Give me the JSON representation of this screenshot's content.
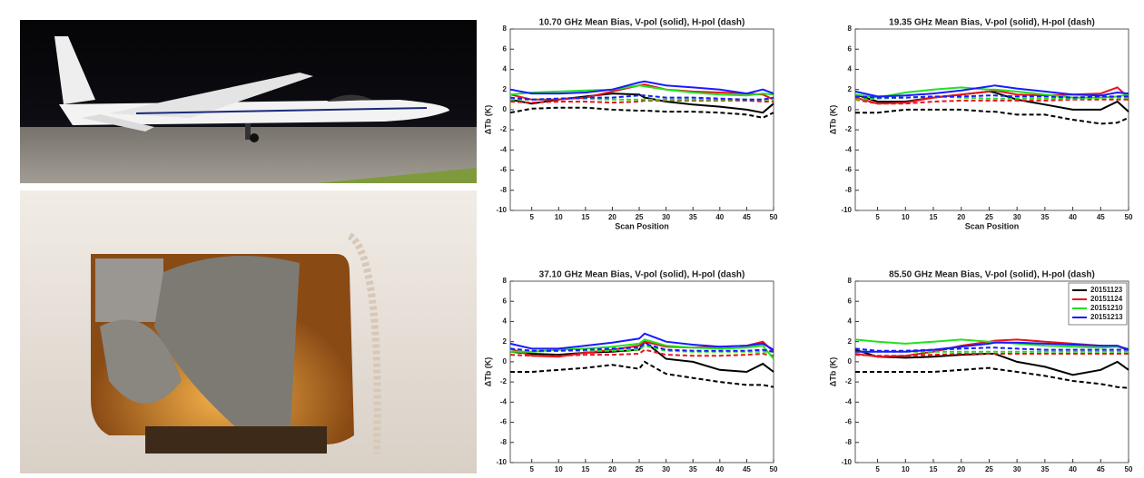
{
  "chart_data": [
    {
      "type": "line",
      "title": "10.70 GHz  Mean Bias, V-pol (solid), H-pol (dash)",
      "xlabel": "Scan Position",
      "ylabel": "ΔTb (K)",
      "xlim": [
        1,
        50
      ],
      "ylim": [
        -10,
        8
      ],
      "xticks": [
        5,
        10,
        15,
        20,
        25,
        30,
        35,
        40,
        45,
        50
      ],
      "yticks": [
        -10,
        -8,
        -6,
        -4,
        -2,
        0,
        2,
        4,
        6,
        8
      ],
      "x": [
        1,
        5,
        10,
        15,
        20,
        25,
        26,
        30,
        35,
        40,
        45,
        48,
        50
      ],
      "series": [
        {
          "color": "#000000",
          "values": [
            1.0,
            0.6,
            1.0,
            1.3,
            1.6,
            1.5,
            1.2,
            0.8,
            0.5,
            0.3,
            0.0,
            -0.3,
            0.6
          ],
          "h_values": [
            -0.3,
            0.1,
            0.2,
            0.2,
            0.0,
            -0.1,
            -0.1,
            -0.2,
            -0.2,
            -0.3,
            -0.5,
            -0.8,
            -0.3
          ]
        },
        {
          "color": "#e8141c",
          "values": [
            1.5,
            1.0,
            1.0,
            1.2,
            1.8,
            2.4,
            2.5,
            2.0,
            1.8,
            1.7,
            1.6,
            1.5,
            1.0
          ],
          "h_values": [
            0.8,
            0.7,
            0.8,
            0.8,
            0.7,
            0.8,
            0.9,
            0.9,
            0.9,
            0.9,
            0.9,
            0.8,
            0.8
          ]
        },
        {
          "color": "#22e022",
          "values": [
            1.5,
            1.7,
            1.8,
            1.9,
            2.0,
            2.4,
            2.3,
            2.0,
            1.7,
            1.5,
            1.4,
            1.6,
            1.5
          ],
          "h_values": [
            1.0,
            1.0,
            1.1,
            1.1,
            1.0,
            1.0,
            1.0,
            1.0,
            1.0,
            1.0,
            1.0,
            1.0,
            1.0
          ]
        },
        {
          "color": "#1a1aff",
          "values": [
            2.0,
            1.6,
            1.6,
            1.7,
            2.0,
            2.7,
            2.8,
            2.4,
            2.2,
            2.0,
            1.6,
            2.0,
            1.6
          ],
          "h_values": [
            1.2,
            1.0,
            1.1,
            1.2,
            1.2,
            1.4,
            1.4,
            1.2,
            1.2,
            1.1,
            1.0,
            1.0,
            1.2
          ]
        }
      ]
    },
    {
      "type": "line",
      "title": "19.35 GHz  Mean Bias, V-pol (solid), H-pol (dash)",
      "xlabel": "Scan Position",
      "ylabel": "ΔTb (K)",
      "xlim": [
        1,
        50
      ],
      "ylim": [
        -10,
        8
      ],
      "xticks": [
        5,
        10,
        15,
        20,
        25,
        30,
        35,
        40,
        45,
        50
      ],
      "yticks": [
        -10,
        -8,
        -6,
        -4,
        -2,
        0,
        2,
        4,
        6,
        8
      ],
      "x": [
        1,
        5,
        10,
        15,
        20,
        25,
        26,
        30,
        35,
        40,
        45,
        48,
        50
      ],
      "series": [
        {
          "color": "#000000",
          "values": [
            1.5,
            0.8,
            0.8,
            1.2,
            1.5,
            1.8,
            1.7,
            1.0,
            0.5,
            0.0,
            0.0,
            0.8,
            -0.2
          ],
          "h_values": [
            -0.3,
            -0.3,
            0.0,
            0.0,
            0.0,
            -0.2,
            -0.2,
            -0.5,
            -0.5,
            -1.0,
            -1.4,
            -1.3,
            -0.8
          ]
        },
        {
          "color": "#e8141c",
          "values": [
            1.2,
            0.6,
            0.7,
            1.2,
            1.5,
            1.8,
            1.9,
            1.5,
            1.4,
            1.5,
            1.6,
            2.2,
            1.2
          ],
          "h_values": [
            1.0,
            0.6,
            0.6,
            0.8,
            0.9,
            0.9,
            0.9,
            0.9,
            0.9,
            1.0,
            1.0,
            1.0,
            1.0
          ]
        },
        {
          "color": "#22e022",
          "values": [
            1.5,
            1.2,
            1.7,
            2.0,
            2.2,
            2.0,
            2.0,
            1.8,
            1.5,
            1.2,
            1.2,
            1.3,
            1.5
          ],
          "h_values": [
            1.0,
            1.1,
            1.2,
            1.3,
            1.2,
            1.1,
            1.1,
            1.1,
            1.1,
            1.1,
            1.2,
            1.2,
            1.2
          ]
        },
        {
          "color": "#1a1aff",
          "values": [
            1.8,
            1.3,
            1.4,
            1.6,
            1.9,
            2.3,
            2.4,
            2.1,
            1.8,
            1.5,
            1.4,
            1.7,
            1.6
          ],
          "h_values": [
            1.3,
            1.2,
            1.2,
            1.3,
            1.3,
            1.4,
            1.4,
            1.3,
            1.3,
            1.2,
            1.3,
            1.3,
            1.3
          ]
        }
      ]
    },
    {
      "type": "line",
      "title": "37.10 GHz  Mean Bias, V-pol (solid), H-pol (dash)",
      "ylabel": "ΔTb (K)",
      "xlim": [
        1,
        50
      ],
      "ylim": [
        -10,
        8
      ],
      "xticks": [
        5,
        10,
        15,
        20,
        25,
        30,
        35,
        40,
        45,
        50
      ],
      "yticks": [
        -10,
        -8,
        -6,
        -4,
        -2,
        0,
        2,
        4,
        6,
        8
      ],
      "x": [
        1,
        5,
        10,
        15,
        20,
        25,
        26,
        30,
        35,
        40,
        45,
        48,
        50
      ],
      "series": [
        {
          "color": "#000000",
          "values": [
            1.0,
            0.8,
            0.7,
            0.9,
            1.0,
            1.2,
            2.0,
            0.3,
            0.0,
            -0.8,
            -1.0,
            -0.2,
            -1.0
          ],
          "h_values": [
            -1.0,
            -1.0,
            -0.8,
            -0.6,
            -0.3,
            -0.7,
            0.0,
            -1.2,
            -1.6,
            -2.0,
            -2.3,
            -2.3,
            -2.5
          ]
        },
        {
          "color": "#e8141c",
          "values": [
            1.3,
            0.6,
            0.5,
            0.9,
            1.2,
            1.6,
            2.0,
            1.5,
            1.4,
            1.5,
            1.6,
            2.0,
            1.0
          ],
          "h_values": [
            0.7,
            0.6,
            0.6,
            0.7,
            0.7,
            0.8,
            1.2,
            0.7,
            0.6,
            0.6,
            0.7,
            0.8,
            0.6
          ]
        },
        {
          "color": "#22e022",
          "values": [
            1.0,
            1.0,
            1.2,
            1.3,
            1.5,
            1.8,
            2.2,
            1.6,
            1.4,
            1.3,
            1.4,
            1.6,
            0.3
          ],
          "h_values": [
            1.0,
            1.0,
            1.1,
            1.1,
            1.1,
            1.2,
            1.6,
            1.1,
            1.0,
            1.0,
            1.0,
            1.0,
            1.0
          ]
        },
        {
          "color": "#1a1aff",
          "values": [
            1.8,
            1.3,
            1.3,
            1.6,
            1.9,
            2.3,
            2.8,
            2.0,
            1.7,
            1.5,
            1.6,
            1.8,
            1.2
          ],
          "h_values": [
            1.3,
            1.1,
            1.1,
            1.2,
            1.3,
            1.4,
            1.8,
            1.2,
            1.1,
            1.1,
            1.1,
            1.2,
            1.0
          ]
        }
      ]
    },
    {
      "type": "line",
      "title": "85.50 GHz  Mean Bias, V-pol (solid), H-pol (dash)",
      "ylabel": "ΔTb (K)",
      "legend": "upper right",
      "xlim": [
        1,
        50
      ],
      "ylim": [
        -10,
        8
      ],
      "xticks": [
        5,
        10,
        15,
        20,
        25,
        30,
        35,
        40,
        45,
        50
      ],
      "yticks": [
        -10,
        -8,
        -6,
        -4,
        -2,
        0,
        2,
        4,
        6,
        8
      ],
      "x": [
        1,
        5,
        10,
        15,
        20,
        25,
        26,
        30,
        35,
        40,
        45,
        48,
        50
      ],
      "series": [
        {
          "name": "20151123",
          "color": "#000000",
          "values": [
            1.2,
            0.5,
            0.4,
            0.5,
            0.7,
            0.8,
            0.8,
            0.0,
            -0.5,
            -1.3,
            -0.8,
            0.0,
            -0.8
          ],
          "h_values": [
            -1.0,
            -1.0,
            -1.0,
            -1.0,
            -0.8,
            -0.6,
            -0.7,
            -1.0,
            -1.4,
            -1.9,
            -2.2,
            -2.5,
            -2.6
          ]
        },
        {
          "name": "20151124",
          "color": "#e8141c",
          "values": [
            0.8,
            0.5,
            0.6,
            1.0,
            1.6,
            2.0,
            2.1,
            2.2,
            2.0,
            1.8,
            1.6,
            1.5,
            1.2
          ],
          "h_values": [
            0.7,
            0.6,
            0.6,
            0.7,
            0.8,
            0.8,
            0.8,
            0.8,
            0.8,
            0.8,
            0.8,
            0.8,
            0.8
          ]
        },
        {
          "name": "20151210",
          "color": "#22e022",
          "values": [
            2.2,
            2.0,
            1.8,
            2.0,
            2.2,
            2.0,
            2.0,
            1.8,
            1.6,
            1.5,
            1.4,
            1.5,
            1.3
          ],
          "h_values": [
            1.0,
            1.0,
            1.0,
            1.0,
            1.0,
            1.0,
            1.0,
            1.0,
            1.0,
            1.0,
            1.0,
            1.0,
            1.0
          ]
        },
        {
          "name": "20151213",
          "color": "#1a1aff",
          "values": [
            1.0,
            1.0,
            1.0,
            1.2,
            1.5,
            1.8,
            1.9,
            1.9,
            1.8,
            1.7,
            1.6,
            1.6,
            1.2
          ],
          "h_values": [
            1.3,
            1.1,
            1.1,
            1.2,
            1.3,
            1.4,
            1.4,
            1.3,
            1.2,
            1.2,
            1.2,
            1.2,
            1.2
          ]
        }
      ]
    }
  ]
}
